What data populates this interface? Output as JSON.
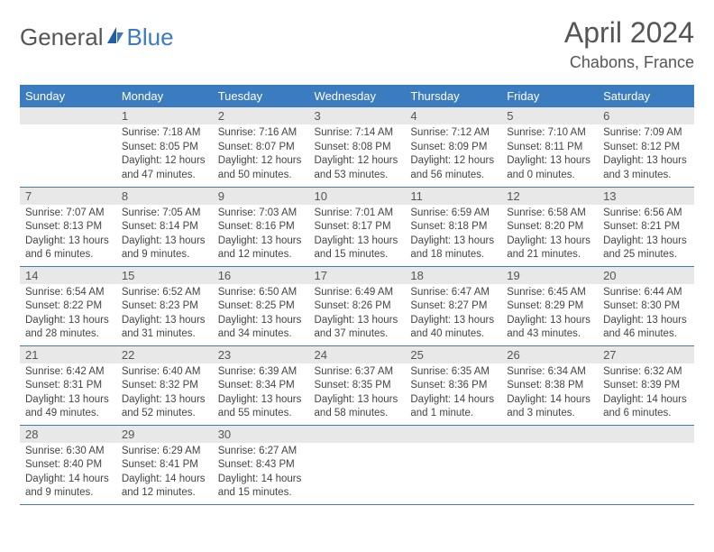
{
  "brand": {
    "text_general": "General",
    "text_blue": "Blue",
    "icon_color": "#1e5fa8"
  },
  "title": "April 2024",
  "location": "Chabons, France",
  "colors": {
    "header_bg": "#3b7bbf",
    "header_text": "#ffffff",
    "daynum_bg": "#e8e8e8",
    "divider": "#3b7bbf",
    "body_text": "#444444",
    "title_text": "#555555"
  },
  "day_headers": [
    "Sunday",
    "Monday",
    "Tuesday",
    "Wednesday",
    "Thursday",
    "Friday",
    "Saturday"
  ],
  "weeks": [
    [
      {
        "blank": true
      },
      {
        "num": "1",
        "sunrise": "Sunrise: 7:18 AM",
        "sunset": "Sunset: 8:05 PM",
        "day1": "Daylight: 12 hours",
        "day2": "and 47 minutes."
      },
      {
        "num": "2",
        "sunrise": "Sunrise: 7:16 AM",
        "sunset": "Sunset: 8:07 PM",
        "day1": "Daylight: 12 hours",
        "day2": "and 50 minutes."
      },
      {
        "num": "3",
        "sunrise": "Sunrise: 7:14 AM",
        "sunset": "Sunset: 8:08 PM",
        "day1": "Daylight: 12 hours",
        "day2": "and 53 minutes."
      },
      {
        "num": "4",
        "sunrise": "Sunrise: 7:12 AM",
        "sunset": "Sunset: 8:09 PM",
        "day1": "Daylight: 12 hours",
        "day2": "and 56 minutes."
      },
      {
        "num": "5",
        "sunrise": "Sunrise: 7:10 AM",
        "sunset": "Sunset: 8:11 PM",
        "day1": "Daylight: 13 hours",
        "day2": "and 0 minutes."
      },
      {
        "num": "6",
        "sunrise": "Sunrise: 7:09 AM",
        "sunset": "Sunset: 8:12 PM",
        "day1": "Daylight: 13 hours",
        "day2": "and 3 minutes."
      }
    ],
    [
      {
        "num": "7",
        "sunrise": "Sunrise: 7:07 AM",
        "sunset": "Sunset: 8:13 PM",
        "day1": "Daylight: 13 hours",
        "day2": "and 6 minutes."
      },
      {
        "num": "8",
        "sunrise": "Sunrise: 7:05 AM",
        "sunset": "Sunset: 8:14 PM",
        "day1": "Daylight: 13 hours",
        "day2": "and 9 minutes."
      },
      {
        "num": "9",
        "sunrise": "Sunrise: 7:03 AM",
        "sunset": "Sunset: 8:16 PM",
        "day1": "Daylight: 13 hours",
        "day2": "and 12 minutes."
      },
      {
        "num": "10",
        "sunrise": "Sunrise: 7:01 AM",
        "sunset": "Sunset: 8:17 PM",
        "day1": "Daylight: 13 hours",
        "day2": "and 15 minutes."
      },
      {
        "num": "11",
        "sunrise": "Sunrise: 6:59 AM",
        "sunset": "Sunset: 8:18 PM",
        "day1": "Daylight: 13 hours",
        "day2": "and 18 minutes."
      },
      {
        "num": "12",
        "sunrise": "Sunrise: 6:58 AM",
        "sunset": "Sunset: 8:20 PM",
        "day1": "Daylight: 13 hours",
        "day2": "and 21 minutes."
      },
      {
        "num": "13",
        "sunrise": "Sunrise: 6:56 AM",
        "sunset": "Sunset: 8:21 PM",
        "day1": "Daylight: 13 hours",
        "day2": "and 25 minutes."
      }
    ],
    [
      {
        "num": "14",
        "sunrise": "Sunrise: 6:54 AM",
        "sunset": "Sunset: 8:22 PM",
        "day1": "Daylight: 13 hours",
        "day2": "and 28 minutes."
      },
      {
        "num": "15",
        "sunrise": "Sunrise: 6:52 AM",
        "sunset": "Sunset: 8:23 PM",
        "day1": "Daylight: 13 hours",
        "day2": "and 31 minutes."
      },
      {
        "num": "16",
        "sunrise": "Sunrise: 6:50 AM",
        "sunset": "Sunset: 8:25 PM",
        "day1": "Daylight: 13 hours",
        "day2": "and 34 minutes."
      },
      {
        "num": "17",
        "sunrise": "Sunrise: 6:49 AM",
        "sunset": "Sunset: 8:26 PM",
        "day1": "Daylight: 13 hours",
        "day2": "and 37 minutes."
      },
      {
        "num": "18",
        "sunrise": "Sunrise: 6:47 AM",
        "sunset": "Sunset: 8:27 PM",
        "day1": "Daylight: 13 hours",
        "day2": "and 40 minutes."
      },
      {
        "num": "19",
        "sunrise": "Sunrise: 6:45 AM",
        "sunset": "Sunset: 8:29 PM",
        "day1": "Daylight: 13 hours",
        "day2": "and 43 minutes."
      },
      {
        "num": "20",
        "sunrise": "Sunrise: 6:44 AM",
        "sunset": "Sunset: 8:30 PM",
        "day1": "Daylight: 13 hours",
        "day2": "and 46 minutes."
      }
    ],
    [
      {
        "num": "21",
        "sunrise": "Sunrise: 6:42 AM",
        "sunset": "Sunset: 8:31 PM",
        "day1": "Daylight: 13 hours",
        "day2": "and 49 minutes."
      },
      {
        "num": "22",
        "sunrise": "Sunrise: 6:40 AM",
        "sunset": "Sunset: 8:32 PM",
        "day1": "Daylight: 13 hours",
        "day2": "and 52 minutes."
      },
      {
        "num": "23",
        "sunrise": "Sunrise: 6:39 AM",
        "sunset": "Sunset: 8:34 PM",
        "day1": "Daylight: 13 hours",
        "day2": "and 55 minutes."
      },
      {
        "num": "24",
        "sunrise": "Sunrise: 6:37 AM",
        "sunset": "Sunset: 8:35 PM",
        "day1": "Daylight: 13 hours",
        "day2": "and 58 minutes."
      },
      {
        "num": "25",
        "sunrise": "Sunrise: 6:35 AM",
        "sunset": "Sunset: 8:36 PM",
        "day1": "Daylight: 14 hours",
        "day2": "and 1 minute."
      },
      {
        "num": "26",
        "sunrise": "Sunrise: 6:34 AM",
        "sunset": "Sunset: 8:38 PM",
        "day1": "Daylight: 14 hours",
        "day2": "and 3 minutes."
      },
      {
        "num": "27",
        "sunrise": "Sunrise: 6:32 AM",
        "sunset": "Sunset: 8:39 PM",
        "day1": "Daylight: 14 hours",
        "day2": "and 6 minutes."
      }
    ],
    [
      {
        "num": "28",
        "sunrise": "Sunrise: 6:30 AM",
        "sunset": "Sunset: 8:40 PM",
        "day1": "Daylight: 14 hours",
        "day2": "and 9 minutes."
      },
      {
        "num": "29",
        "sunrise": "Sunrise: 6:29 AM",
        "sunset": "Sunset: 8:41 PM",
        "day1": "Daylight: 14 hours",
        "day2": "and 12 minutes."
      },
      {
        "num": "30",
        "sunrise": "Sunrise: 6:27 AM",
        "sunset": "Sunset: 8:43 PM",
        "day1": "Daylight: 14 hours",
        "day2": "and 15 minutes."
      },
      {
        "blank": true
      },
      {
        "blank": true
      },
      {
        "blank": true
      },
      {
        "blank": true
      }
    ]
  ]
}
